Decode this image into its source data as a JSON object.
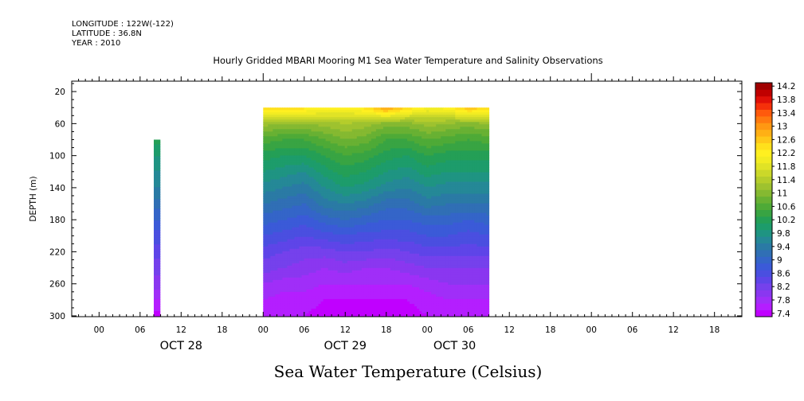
{
  "header": {
    "longitude": "LONGITUDE : 122W(-122)",
    "latitude": "LATITUDE : 36.8N",
    "year": "YEAR : 2010"
  },
  "chart_data": {
    "type": "heatmap",
    "title": "Hourly Gridded MBARI Mooring M1 Sea Water Temperature and Salinity Observations",
    "caption": "Sea Water Temperature (Celsius)",
    "ylabel": "DEPTH (m)",
    "y_reversed": true,
    "ylim": [
      7,
      301
    ],
    "xlim_hours": [
      -4,
      94
    ],
    "x_time_origin": "OCT 28 00:00 2010",
    "x_tick_hours": [
      0,
      6,
      12,
      18,
      24,
      30,
      36,
      42,
      48,
      54,
      60,
      66,
      72,
      78,
      84,
      90
    ],
    "x_tick_labels": [
      "00",
      "06",
      "12",
      "18",
      "00",
      "06",
      "12",
      "18",
      "00",
      "06",
      "12",
      "18",
      "00",
      "06",
      "12",
      "18"
    ],
    "x_date_labels": [
      {
        "hour": 12,
        "label": "OCT 28"
      },
      {
        "hour": 36,
        "label": "OCT 29"
      },
      {
        "hour": 52,
        "label": "OCT 30"
      }
    ],
    "y_ticks": [
      20,
      60,
      100,
      140,
      180,
      220,
      260,
      300
    ],
    "colorbar_levels": [
      7.4,
      7.6,
      7.8,
      8.0,
      8.2,
      8.4,
      8.6,
      8.8,
      9.0,
      9.2,
      9.4,
      9.6,
      9.8,
      10.0,
      10.2,
      10.4,
      10.6,
      10.8,
      11.0,
      11.2,
      11.4,
      11.6,
      11.8,
      12.0,
      12.2,
      12.4,
      12.6,
      12.8,
      13.0,
      13.2,
      13.4,
      13.6,
      13.8,
      14.0,
      14.2
    ],
    "colorbar_tick_labels": [
      "7.4",
      "7.8",
      "8.2",
      "8.6",
      "9",
      "9.4",
      "9.8",
      "10.2",
      "10.6",
      "11",
      "11.4",
      "11.8",
      "12.2",
      "12.6",
      "13",
      "13.4",
      "13.8",
      "14.2"
    ],
    "colorbar_colors": [
      "#c000ff",
      "#b41eff",
      "#a02ef8",
      "#8a37f0",
      "#7541ec",
      "#5e45e8",
      "#4a4fe0",
      "#3b5ad8",
      "#3465c8",
      "#306fb5",
      "#2a7aa5",
      "#258897",
      "#1f9482",
      "#1d9c6b",
      "#249f56",
      "#38a443",
      "#4eaa37",
      "#68b133",
      "#85b931",
      "#9ec22f",
      "#b5cd2b",
      "#cbd829",
      "#e0e326",
      "#f2ec22",
      "#fff020",
      "#ffe01c",
      "#ffc819",
      "#ffb015",
      "#ff9812",
      "#ff7a0f",
      "#ff5a0c",
      "#f5300a",
      "#e01008",
      "#c00000",
      "#a00000"
    ],
    "depths": [
      40,
      60,
      80,
      100,
      120,
      140,
      160,
      180,
      200,
      220,
      240,
      260,
      280,
      300
    ],
    "series": [
      {
        "hours": [
          8.0,
          8.9
        ],
        "depth_top": 80,
        "temperature_profiles": [
          [
            null,
            null,
            10.3,
            10.0,
            9.8,
            9.6,
            9.3,
            9.0,
            8.7,
            8.5,
            8.3,
            8.1,
            7.8,
            7.5
          ],
          [
            null,
            null,
            10.3,
            10.0,
            9.8,
            9.6,
            9.3,
            9.0,
            8.7,
            8.5,
            8.3,
            8.1,
            7.8,
            7.5
          ]
        ]
      },
      {
        "hours": [
          24,
          27,
          30,
          33,
          36,
          39,
          42,
          45,
          48,
          51,
          54,
          57
        ],
        "depth_top": 40,
        "temperature_profiles": [
          [
            12.5,
            11.3,
            10.7,
            10.3,
            10.0,
            9.7,
            9.4,
            9.1,
            8.8,
            8.5,
            8.3,
            8.0,
            7.8,
            7.7
          ],
          [
            12.6,
            11.2,
            10.6,
            10.2,
            9.9,
            9.6,
            9.3,
            9.0,
            8.7,
            8.4,
            8.2,
            7.9,
            7.7,
            7.6
          ],
          [
            12.5,
            11.2,
            10.6,
            10.2,
            9.8,
            9.5,
            9.2,
            8.9,
            8.6,
            8.3,
            8.1,
            7.9,
            7.7,
            7.6
          ],
          [
            12.4,
            11.3,
            10.8,
            10.4,
            10.1,
            9.8,
            9.5,
            9.1,
            8.7,
            8.3,
            8.0,
            7.8,
            7.6,
            7.5
          ],
          [
            12.3,
            11.4,
            11.0,
            10.6,
            10.3,
            10.0,
            9.6,
            9.2,
            8.8,
            8.4,
            8.1,
            7.8,
            7.6,
            7.5
          ],
          [
            12.5,
            11.3,
            10.9,
            10.5,
            10.2,
            9.9,
            9.5,
            9.1,
            8.7,
            8.4,
            8.0,
            7.8,
            7.6,
            7.4
          ],
          [
            13.1,
            11.1,
            10.6,
            10.3,
            10.0,
            9.7,
            9.3,
            9.0,
            8.7,
            8.3,
            8.0,
            7.8,
            7.6,
            7.4
          ],
          [
            12.6,
            11.1,
            10.6,
            10.2,
            9.9,
            9.6,
            9.3,
            9.0,
            8.7,
            8.4,
            8.1,
            7.8,
            7.6,
            7.5
          ],
          [
            12.2,
            11.3,
            10.8,
            10.4,
            10.1,
            9.8,
            9.5,
            9.1,
            8.8,
            8.5,
            8.2,
            7.9,
            7.7,
            7.6
          ],
          [
            12.3,
            11.2,
            10.7,
            10.3,
            10.0,
            9.7,
            9.4,
            9.1,
            8.8,
            8.5,
            8.2,
            8.0,
            7.8,
            7.7
          ],
          [
            12.8,
            11.1,
            10.6,
            10.3,
            10.0,
            9.7,
            9.4,
            9.0,
            8.7,
            8.5,
            8.2,
            8.0,
            7.8,
            7.7
          ],
          [
            12.6,
            11.2,
            10.7,
            10.3,
            10.0,
            9.7,
            9.4,
            9.1,
            8.8,
            8.5,
            8.2,
            8.0,
            7.8,
            7.7
          ]
        ]
      }
    ]
  }
}
